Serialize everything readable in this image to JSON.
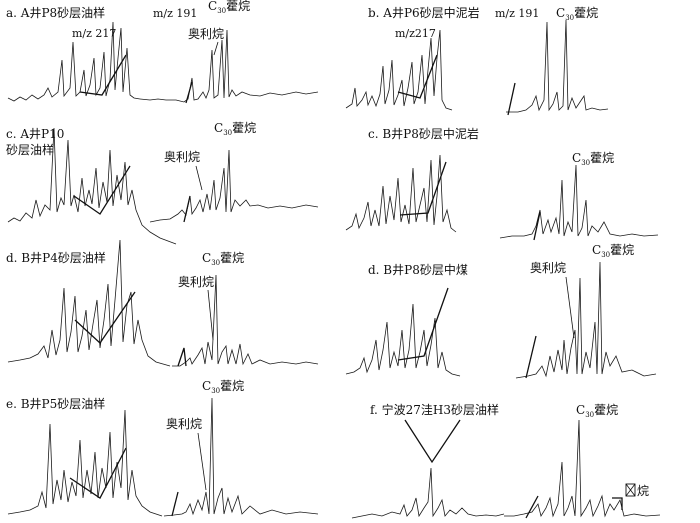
{
  "panels": [
    {
      "title": "a. A井P8砂层油样",
      "mz217": "m/z 217",
      "mz191": "m/z 191",
      "c30": "C",
      "c30_sub": "30",
      "c30_name": "藿烷",
      "oleanane": "奥利烷"
    },
    {
      "title": "b. A井P6砂层中泥岩",
      "mz217": "m/z217",
      "mz191": "m/z 191",
      "c30": "C",
      "c30_sub": "30",
      "c30_name": "藿烷"
    },
    {
      "title_line1": "c. A井P10",
      "title_line2": "砂层油样",
      "c30": "C",
      "c30_sub": "30",
      "c30_name": "藿烷",
      "oleanane": "奥利烷"
    },
    {
      "title": "c. B井P8砂层中泥岩",
      "c30": "C",
      "c30_sub": "30",
      "c30_name": "藿烷"
    },
    {
      "title": "d. B井P4砂层油样",
      "c30": "C",
      "c30_sub": "30",
      "c30_name": "藿烷",
      "oleanane": "奥利烷"
    },
    {
      "title": "d. B井P8砂层中煤",
      "c30": "C",
      "c30_sub": "30",
      "c30_name": "藿烷",
      "oleanane": "奥利烷"
    },
    {
      "title": "e. B井P5砂层油样",
      "c30": "C",
      "c30_sub": "30",
      "c30_name": "藿烷",
      "oleanane": "奥利烷"
    },
    {
      "title": "f. 宁波27洼H3砂层油样",
      "c30": "C",
      "c30_sub": "30",
      "c30_name": "藿烷",
      "oleanane_partial": "烷"
    }
  ]
}
